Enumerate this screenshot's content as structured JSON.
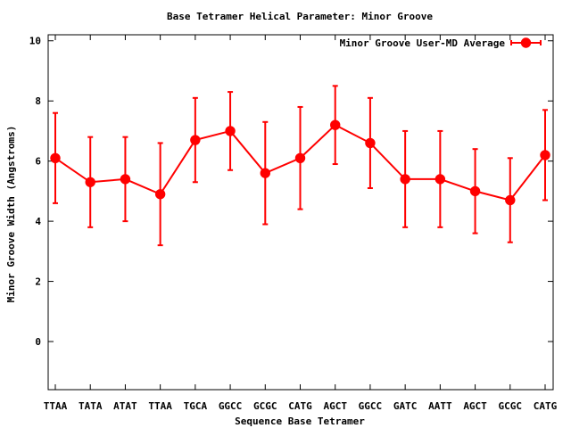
{
  "chart_data": {
    "type": "line",
    "title": "Base Tetramer Helical Parameter: Minor Groove",
    "xlabel": "Sequence Base Tetramer",
    "ylabel": "Minor Groove Width (Angstroms)",
    "ylim": [
      -1.6,
      10.2
    ],
    "yticks": [
      0,
      2,
      4,
      6,
      8,
      10
    ],
    "grid": false,
    "legend_position": "top-right",
    "categories": [
      "TTAA",
      "TATA",
      "ATAT",
      "TTAA",
      "TGCA",
      "GGCC",
      "GCGC",
      "CATG",
      "AGCT",
      "GGCC",
      "GATC",
      "AATT",
      "AGCT",
      "GCGC",
      "CATG"
    ],
    "series": [
      {
        "name": "Minor Groove User-MD Average",
        "color": "#ff0000",
        "values": [
          6.1,
          5.3,
          5.4,
          4.9,
          6.7,
          7.0,
          5.6,
          6.1,
          7.2,
          6.6,
          5.4,
          5.4,
          5.0,
          4.7,
          6.2
        ],
        "error": [
          1.5,
          1.5,
          1.4,
          1.7,
          1.4,
          1.3,
          1.7,
          1.7,
          1.3,
          1.5,
          1.6,
          1.6,
          1.4,
          1.4,
          1.5
        ]
      }
    ]
  }
}
